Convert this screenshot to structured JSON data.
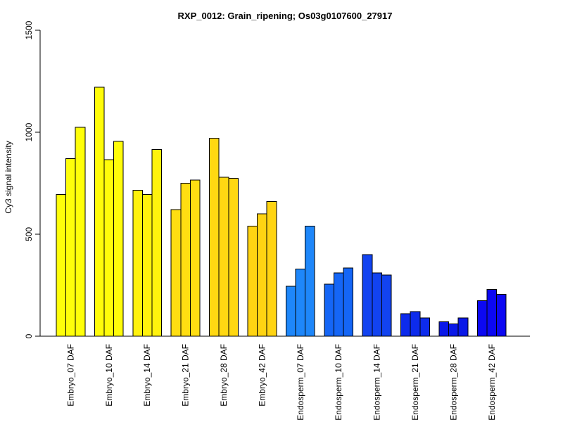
{
  "chart_data": {
    "type": "bar",
    "title": "RXP_0012: Grain_ripening; Os03g0107600_27917",
    "ylabel": "Cy3 signal intensity",
    "xlabel": "",
    "ylim": [
      0,
      1500
    ],
    "yticks": [
      0,
      500,
      1000,
      1500
    ],
    "grid": false,
    "legend_position": "none",
    "bars_per_group": 3,
    "bar_border_color": "#000000",
    "background_color": "#ffffff",
    "groups": [
      {
        "label": "Embryo_07 DAF",
        "color": "#FFFF0A",
        "values": [
          695,
          870,
          1025
        ]
      },
      {
        "label": "Embryo_10 DAF",
        "color": "#FFFC0A",
        "values": [
          1220,
          865,
          955
        ]
      },
      {
        "label": "Embryo_14 DAF",
        "color": "#FFF20D",
        "values": [
          715,
          695,
          915
        ]
      },
      {
        "label": "Embryo_21 DAF",
        "color": "#FFDE12",
        "values": [
          620,
          750,
          765
        ]
      },
      {
        "label": "Embryo_28 DAF",
        "color": "#FFD812",
        "values": [
          970,
          780,
          775
        ]
      },
      {
        "label": "Embryo_42 DAF",
        "color": "#FFD412",
        "values": [
          540,
          600,
          660
        ]
      },
      {
        "label": "Endosperm_07 DAF",
        "color": "#1E87FA",
        "values": [
          245,
          330,
          540
        ]
      },
      {
        "label": "Endosperm_10 DAF",
        "color": "#1566F6",
        "values": [
          255,
          310,
          335
        ]
      },
      {
        "label": "Endosperm_14 DAF",
        "color": "#1243F0",
        "values": [
          400,
          310,
          300
        ]
      },
      {
        "label": "Endosperm_21 DAF",
        "color": "#0D2BEC",
        "values": [
          110,
          120,
          90
        ]
      },
      {
        "label": "Endosperm_28 DAF",
        "color": "#0A18E8",
        "values": [
          70,
          60,
          90
        ]
      },
      {
        "label": "Endosperm_42 DAF",
        "color": "#0C08F2",
        "values": [
          175,
          230,
          205
        ]
      }
    ]
  }
}
